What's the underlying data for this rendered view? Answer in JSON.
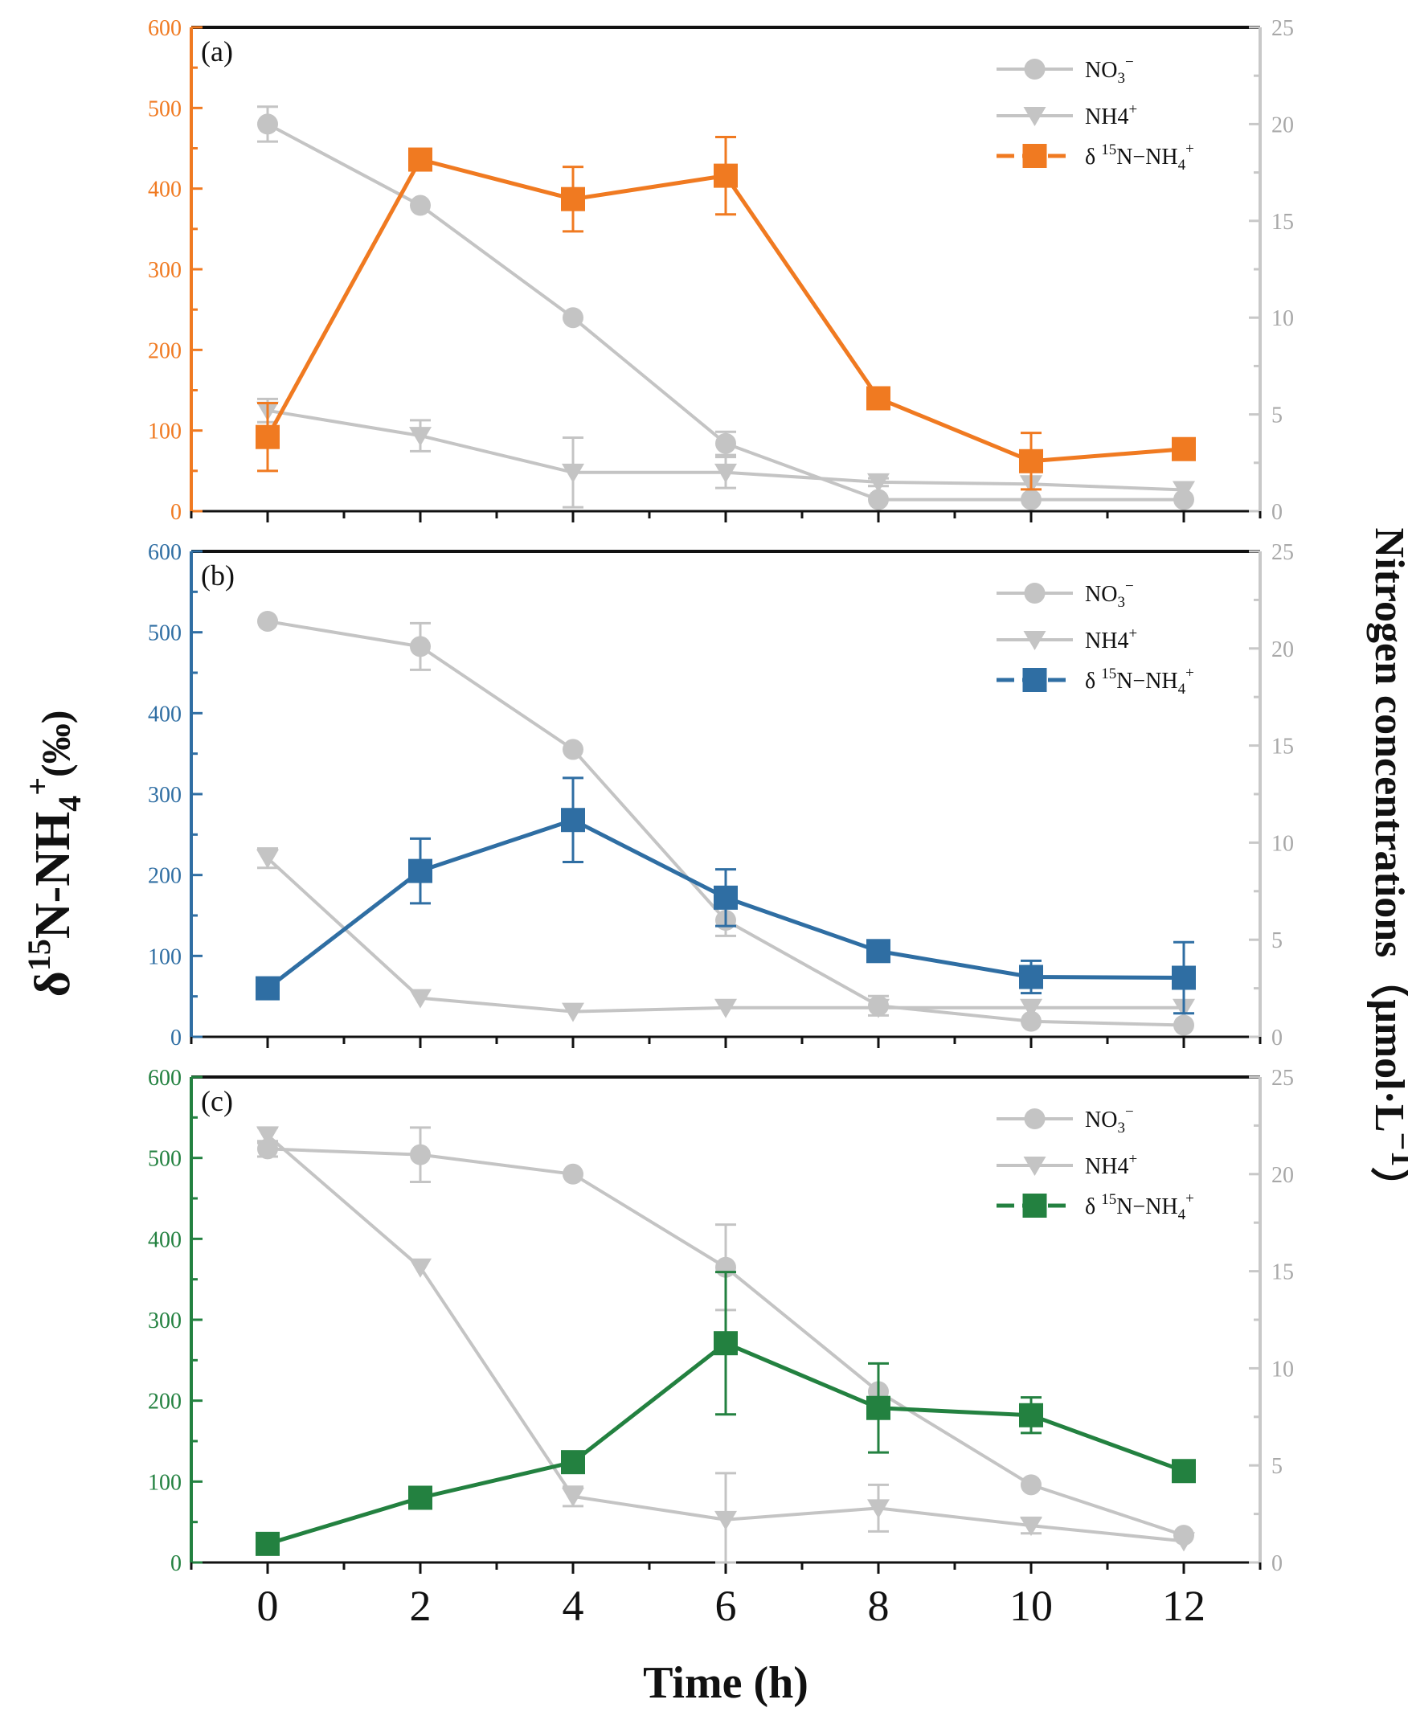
{
  "figure": {
    "left_axis_label": "δ15N-NH4+(‰)",
    "left_axis_label_parts": {
      "delta": "δ",
      "mass": "15",
      "n": "N-NH",
      "sub": "4",
      "sup": "+",
      "unit": "(‰)"
    },
    "right_axis_label": "Nitrogen concentrations (μmol·L−1)",
    "right_axis_label_parts": {
      "main": "Nitrogen concentrations（μmol·L",
      "exp": "−1",
      "close": "）"
    },
    "x_axis_label": "Time (h)"
  },
  "chart_data": [
    {
      "type": "line",
      "panel": "(a)",
      "accent": "#f07a21",
      "x": [
        0,
        2,
        4,
        6,
        8,
        10,
        12
      ],
      "xlim": [
        -1,
        13
      ],
      "x_ticks": [
        0,
        2,
        4,
        6,
        8,
        10,
        12
      ],
      "left_ylim": [
        0,
        600
      ],
      "left_ticks": [
        0,
        100,
        200,
        300,
        400,
        500,
        600
      ],
      "right_ylim": [
        0,
        25
      ],
      "right_ticks": [
        0,
        5,
        10,
        15,
        20,
        25
      ],
      "legend": {
        "no3": {
          "label": "NO",
          "sub": "3",
          "sup": "−"
        },
        "nh4": {
          "label": "NH4",
          "sup": "+"
        },
        "delta": {
          "label": "δ ",
          "mass": "15",
          "n": "N−NH",
          "sub": "4",
          "sup": "+"
        }
      },
      "series": [
        {
          "key": "no3",
          "name": "NO3−",
          "axis": "right",
          "marker": "circle",
          "color": "#c4c4c4",
          "values": [
            20,
            15.8,
            10,
            3.5,
            0.6,
            0.6,
            0.6
          ],
          "errors": [
            0.9,
            0,
            0,
            0.6,
            0,
            0,
            0
          ]
        },
        {
          "key": "nh4",
          "name": "NH4+",
          "axis": "right",
          "marker": "triangle",
          "color": "#c4c4c4",
          "values": [
            5.2,
            3.9,
            2.0,
            2.0,
            1.5,
            1.4,
            1.1
          ],
          "errors": [
            0.6,
            0.8,
            1.8,
            0.8,
            0.2,
            0,
            0
          ]
        },
        {
          "key": "delta",
          "name": "δ15N-NH4+",
          "axis": "left",
          "marker": "square",
          "color": "#f07a21",
          "values": [
            92,
            436,
            387,
            416,
            140,
            62,
            77
          ],
          "errors": [
            42,
            8,
            40,
            48,
            8,
            35,
            8
          ]
        }
      ]
    },
    {
      "type": "line",
      "panel": "(b)",
      "accent": "#2f6ea3",
      "x": [
        0,
        2,
        4,
        6,
        8,
        10,
        12
      ],
      "xlim": [
        -1,
        13
      ],
      "x_ticks": [
        0,
        2,
        4,
        6,
        8,
        10,
        12
      ],
      "left_ylim": [
        0,
        600
      ],
      "left_ticks": [
        0,
        100,
        200,
        300,
        400,
        500,
        600
      ],
      "right_ylim": [
        0,
        25
      ],
      "right_ticks": [
        0,
        5,
        10,
        15,
        20,
        25
      ],
      "legend": {
        "no3": {
          "label": "NO",
          "sub": "3",
          "sup": "−"
        },
        "nh4": {
          "label": "NH4",
          "sup": "+"
        },
        "delta": {
          "label": "δ ",
          "mass": "15",
          "n": "N−NH",
          "sub": "4",
          "sup": "+"
        }
      },
      "series": [
        {
          "key": "no3",
          "name": "NO3−",
          "axis": "right",
          "marker": "circle",
          "color": "#c4c4c4",
          "values": [
            21.4,
            20.1,
            14.8,
            6.0,
            1.6,
            0.8,
            0.6
          ],
          "errors": [
            0,
            1.2,
            0,
            0.8,
            0.5,
            0,
            0
          ]
        },
        {
          "key": "nh4",
          "name": "NH4+",
          "axis": "right",
          "marker": "triangle",
          "color": "#c4c4c4",
          "values": [
            9.2,
            2.0,
            1.3,
            1.5,
            1.5,
            1.5,
            1.5
          ],
          "errors": [
            0.5,
            0,
            0,
            0,
            0,
            0,
            0
          ]
        },
        {
          "key": "delta",
          "name": "δ15N-NH4+",
          "axis": "left",
          "marker": "square",
          "color": "#2f6ea3",
          "values": [
            60,
            205,
            268,
            172,
            106,
            74,
            73
          ],
          "errors": [
            8,
            40,
            52,
            35,
            10,
            20,
            44
          ]
        }
      ]
    },
    {
      "type": "line",
      "panel": "(c)",
      "accent": "#238140",
      "x": [
        0,
        2,
        4,
        6,
        8,
        10,
        12
      ],
      "xlim": [
        -1,
        13
      ],
      "x_ticks": [
        0,
        2,
        4,
        6,
        8,
        10,
        12
      ],
      "left_ylim": [
        0,
        600
      ],
      "left_ticks": [
        0,
        100,
        200,
        300,
        400,
        500,
        600
      ],
      "right_ylim": [
        0,
        25
      ],
      "right_ticks": [
        0,
        5,
        10,
        15,
        20,
        25
      ],
      "legend": {
        "no3": {
          "label": "NO",
          "sub": "3",
          "sup": "−"
        },
        "nh4": {
          "label": "NH4",
          "sup": "+"
        },
        "delta": {
          "label": "δ ",
          "mass": "15",
          "n": "N−NH",
          "sub": "4",
          "sup": "+"
        }
      },
      "series": [
        {
          "key": "no3",
          "name": "NO3−",
          "axis": "right",
          "marker": "circle",
          "color": "#c4c4c4",
          "values": [
            21.3,
            21.0,
            20.0,
            15.2,
            8.8,
            4.0,
            1.4
          ],
          "errors": [
            0.4,
            1.4,
            0,
            2.2,
            0,
            0,
            0
          ]
        },
        {
          "key": "nh4",
          "name": "NH4+",
          "axis": "right",
          "marker": "triangle",
          "color": "#c4c4c4",
          "values": [
            22.0,
            15.2,
            3.4,
            2.2,
            2.8,
            1.9,
            1.1
          ],
          "errors": [
            0.4,
            0,
            0.5,
            2.4,
            1.2,
            0.4,
            0
          ]
        },
        {
          "key": "delta",
          "name": "δ15N-NH4+",
          "axis": "left",
          "marker": "square",
          "color": "#238140",
          "values": [
            23,
            80,
            124,
            271,
            191,
            182,
            113
          ],
          "errors": [
            6,
            8,
            8,
            88,
            55,
            22,
            6
          ]
        }
      ]
    }
  ]
}
